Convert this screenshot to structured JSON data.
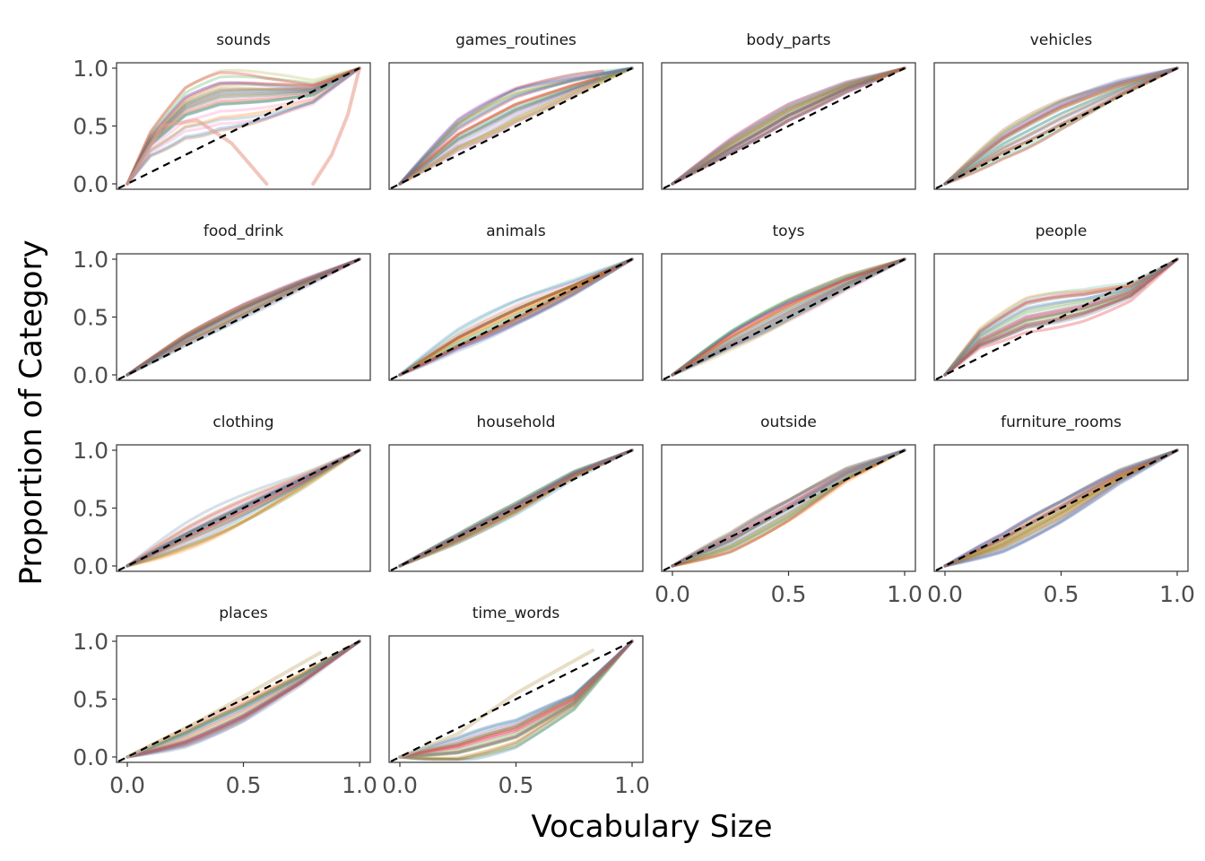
{
  "chart_data": {
    "type": "line",
    "xlabel": "Vocabulary Size",
    "ylabel": "Proportion of Category",
    "xlim": [
      0,
      1
    ],
    "ylim": [
      0,
      1
    ],
    "x_ticks": [
      "0.0",
      "0.5",
      "1.0"
    ],
    "y_ticks": [
      "0.0",
      "0.5",
      "1.0"
    ],
    "reference_line": {
      "style": "dashed",
      "color": "#000000",
      "from": [
        0,
        0
      ],
      "to": [
        1,
        1
      ]
    },
    "series_palette": [
      "#e41a1c",
      "#377eb8",
      "#4daf4a",
      "#984ea3",
      "#ff7f00",
      "#a6a61a",
      "#a65628",
      "#f781bf",
      "#6a8fb0",
      "#66c2a5",
      "#b3b34d",
      "#7570b3"
    ],
    "layout": "4 columns x 4 rows, facet_wrap",
    "panels": [
      {
        "name": "sounds",
        "typical": [
          [
            0,
            0
          ],
          [
            0.1,
            0.35
          ],
          [
            0.25,
            0.62
          ],
          [
            0.4,
            0.72
          ],
          [
            0.6,
            0.74
          ],
          [
            0.8,
            0.78
          ],
          [
            1,
            1
          ]
        ],
        "spread": 0.16,
        "outliers": [
          {
            "points": [
              [
                0,
                0
              ],
              [
                0.15,
                0.5
              ],
              [
                0.3,
                0.55
              ],
              [
                0.45,
                0.35
              ],
              [
                0.6,
                0
              ]
            ],
            "color": "#e8a090"
          },
          {
            "points": [
              [
                0.8,
                0
              ],
              [
                0.88,
                0.25
              ],
              [
                0.95,
                0.6
              ],
              [
                1,
                1
              ]
            ],
            "color": "#e8a090"
          }
        ]
      },
      {
        "name": "games_routines",
        "typical": [
          [
            0,
            0
          ],
          [
            0.25,
            0.42
          ],
          [
            0.5,
            0.68
          ],
          [
            0.75,
            0.85
          ],
          [
            1,
            1
          ]
        ],
        "spread": 0.1
      },
      {
        "name": "body_parts",
        "typical": [
          [
            0,
            0
          ],
          [
            0.25,
            0.33
          ],
          [
            0.5,
            0.62
          ],
          [
            0.75,
            0.84
          ],
          [
            1,
            1
          ]
        ],
        "spread": 0.05
      },
      {
        "name": "vehicles",
        "typical": [
          [
            0,
            0
          ],
          [
            0.25,
            0.34
          ],
          [
            0.5,
            0.6
          ],
          [
            0.75,
            0.82
          ],
          [
            1,
            1
          ]
        ],
        "spread": 0.08
      },
      {
        "name": "food_drink",
        "typical": [
          [
            0,
            0
          ],
          [
            0.25,
            0.3
          ],
          [
            0.5,
            0.55
          ],
          [
            0.75,
            0.78
          ],
          [
            1,
            1
          ]
        ],
        "spread": 0.04
      },
      {
        "name": "animals",
        "typical": [
          [
            0,
            0
          ],
          [
            0.25,
            0.3
          ],
          [
            0.5,
            0.54
          ],
          [
            0.75,
            0.76
          ],
          [
            1,
            1
          ]
        ],
        "spread": 0.07
      },
      {
        "name": "toys",
        "typical": [
          [
            0,
            0
          ],
          [
            0.25,
            0.3
          ],
          [
            0.5,
            0.56
          ],
          [
            0.75,
            0.8
          ],
          [
            1,
            1
          ]
        ],
        "spread": 0.06
      },
      {
        "name": "people",
        "typical": [
          [
            0,
            0
          ],
          [
            0.15,
            0.3
          ],
          [
            0.35,
            0.5
          ],
          [
            0.6,
            0.6
          ],
          [
            0.8,
            0.72
          ],
          [
            1,
            1
          ]
        ],
        "spread": 0.1
      },
      {
        "name": "clothing",
        "typical": [
          [
            0,
            0
          ],
          [
            0.25,
            0.26
          ],
          [
            0.5,
            0.5
          ],
          [
            0.75,
            0.74
          ],
          [
            1,
            1
          ]
        ],
        "spread": 0.08
      },
      {
        "name": "household",
        "typical": [
          [
            0,
            0
          ],
          [
            0.25,
            0.24
          ],
          [
            0.5,
            0.5
          ],
          [
            0.75,
            0.79
          ],
          [
            1,
            1
          ]
        ],
        "spread": 0.04
      },
      {
        "name": "outside",
        "typical": [
          [
            0,
            0
          ],
          [
            0.25,
            0.2
          ],
          [
            0.5,
            0.48
          ],
          [
            0.75,
            0.79
          ],
          [
            1,
            1
          ]
        ],
        "spread": 0.06
      },
      {
        "name": "furniture_rooms",
        "typical": [
          [
            0,
            0
          ],
          [
            0.25,
            0.2
          ],
          [
            0.5,
            0.47
          ],
          [
            0.75,
            0.77
          ],
          [
            1,
            1
          ]
        ],
        "spread": 0.06
      },
      {
        "name": "places",
        "typical": [
          [
            0,
            0
          ],
          [
            0.25,
            0.17
          ],
          [
            0.5,
            0.4
          ],
          [
            0.75,
            0.68
          ],
          [
            1,
            1
          ]
        ],
        "spread": 0.06,
        "outliers": [
          {
            "points": [
              [
                0,
                0
              ],
              [
                0.3,
                0.3
              ],
              [
                0.55,
                0.58
              ],
              [
                0.83,
                0.9
              ]
            ],
            "color": "#d9c7a0"
          }
        ]
      },
      {
        "name": "time_words",
        "typical": [
          [
            0,
            0
          ],
          [
            0.25,
            0.06
          ],
          [
            0.5,
            0.2
          ],
          [
            0.75,
            0.48
          ],
          [
            1,
            1
          ]
        ],
        "spread": 0.08,
        "outliers": [
          {
            "points": [
              [
                0,
                0
              ],
              [
                0.25,
                0.2
              ],
              [
                0.5,
                0.55
              ],
              [
                0.83,
                0.92
              ]
            ],
            "color": "#d9c7a0"
          }
        ]
      }
    ]
  }
}
